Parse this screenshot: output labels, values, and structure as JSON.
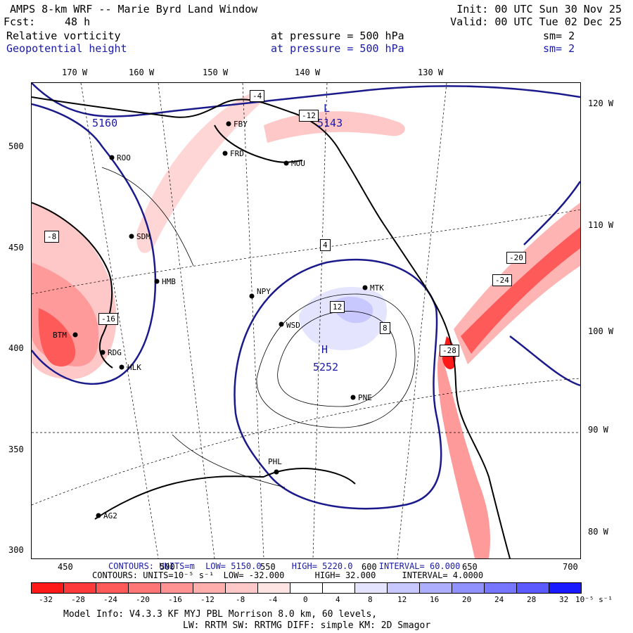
{
  "header": {
    "title": "AMPS 8-km WRF -- Marie Byrd Land Window",
    "init": "Init: 00 UTC Sun 30 Nov 25",
    "fcst_label": "Fcst:",
    "fcst_value": "48 h",
    "valid": "Valid: 00 UTC Tue 02 Dec 25"
  },
  "fields": [
    {
      "name": "Relative vorticity",
      "level": "at pressure =  500 hPa",
      "smooth": "sm= 2",
      "color": "#000000"
    },
    {
      "name": "Geopotential height",
      "level": "at pressure =  500 hPa",
      "smooth": "sm= 2",
      "color": "#1a1aa8"
    }
  ],
  "axes": {
    "top_lon": [
      "170 W",
      "160 W",
      "150 W",
      "140 W",
      "130 W"
    ],
    "left": [
      "500",
      "450",
      "400",
      "350",
      "300"
    ],
    "bottom": [
      "450",
      "500",
      "550",
      "600",
      "650",
      "700"
    ],
    "right_lon": [
      "120 W",
      "110 W",
      "100 W",
      "90 W",
      "80 W"
    ]
  },
  "map_labels": {
    "stations": [
      "FBY",
      "FRD",
      "MOU",
      "ROO",
      "SDM",
      "HMB",
      "NPY",
      "WSD",
      "MTK",
      "RDG",
      "HLK",
      "PNE",
      "PHL",
      "AG2",
      "BTM"
    ],
    "contour_values": [
      "-4",
      "-8",
      "-12",
      "-16",
      "-20",
      "-24",
      "-28",
      "4",
      "8",
      "12"
    ],
    "height_values": [
      "5160",
      "5143",
      "5252"
    ],
    "extrema": [
      "L",
      "H"
    ]
  },
  "contours_summary": {
    "height": {
      "prefix": "CONTOURS:",
      "units": "UNITS=m",
      "low": "LOW=  5150.0",
      "high": "HIGH=  5220.0",
      "interval": "INTERVAL= 60.000"
    },
    "vort": {
      "prefix": "CONTOURS:",
      "units": "UNITS=10⁻⁵ s⁻¹",
      "low": "LOW= -32.000",
      "high": "HIGH=  32.000",
      "interval": "INTERVAL=   4.0000"
    }
  },
  "colorbar": {
    "ticks": [
      "-32",
      "-28",
      "-24",
      "-20",
      "-16",
      "-12",
      "-8",
      "-4",
      "0",
      "4",
      "8",
      "12",
      "16",
      "20",
      "24",
      "28",
      "32"
    ],
    "units": "10⁻⁵ s⁻¹",
    "colors": [
      "#ff1a1a",
      "#ff3a3a",
      "#ff5a5a",
      "#ff7676",
      "#ff9292",
      "#ffaeae",
      "#ffc8c8",
      "#ffe4e4",
      "#ffffff",
      "#ffffff",
      "#e4e4ff",
      "#c8c8ff",
      "#aeaeff",
      "#9292ff",
      "#7676ff",
      "#5a5aff",
      "#1a1aff"
    ]
  },
  "footer": {
    "model_info": "Model Info: V4.3.3    KF      MYJ PBL  Morrison           8.0 km,  60 levels,",
    "physics": "LW: RRTM SW: RRTMG   DIFF: simple KM: 2D Smagor"
  }
}
